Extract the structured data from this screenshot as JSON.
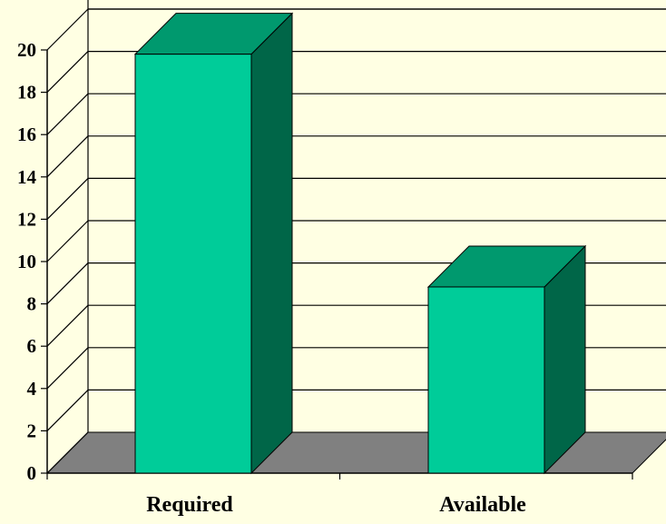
{
  "chart_data": {
    "type": "bar",
    "categories": [
      "Required",
      "Available"
    ],
    "values": [
      19.8,
      8.8
    ],
    "title": "",
    "xlabel": "",
    "ylabel": "",
    "ylim": [
      0,
      20
    ],
    "yticks": [
      0,
      2,
      4,
      6,
      8,
      10,
      12,
      14,
      16,
      18,
      20
    ],
    "grid": true,
    "legend": "none",
    "style": "3d-column"
  },
  "colors": {
    "background": "#ffffe3",
    "bar_front": "#00cc99",
    "bar_top": "#00996e",
    "bar_side": "#006648",
    "floor": "#808080",
    "gridline": "#000000"
  }
}
